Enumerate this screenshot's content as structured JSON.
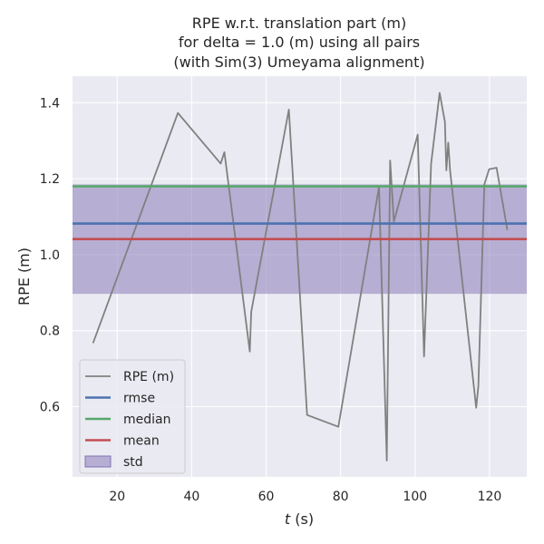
{
  "chart_data": {
    "type": "line",
    "title": [
      "RPE w.r.t. translation part (m)",
      "for delta = 1.0 (m) using all pairs",
      "(with Sim(3) Umeyama alignment)"
    ],
    "xlabel_var": "t",
    "xlabel_unit": " (s)",
    "ylabel": "RPE (m)",
    "xlim": [
      8,
      130
    ],
    "ylim": [
      0.415,
      1.47
    ],
    "xticks": [
      20,
      40,
      60,
      80,
      100,
      120
    ],
    "yticks": [
      0.6,
      0.8,
      1.0,
      1.2,
      1.4
    ],
    "xtick_labels": [
      "20",
      "40",
      "60",
      "80",
      "100",
      "120"
    ],
    "ytick_labels": [
      "0.6",
      "0.8",
      "1.0",
      "1.2",
      "1.4"
    ],
    "grid": true,
    "legend_position": "lower-left",
    "series": [
      {
        "name": "RPE (m)",
        "kind": "line",
        "color": "#808080",
        "x": [
          13.5,
          36.3,
          47.8,
          48.8,
          55.6,
          56.0,
          66.1,
          71.0,
          79.4,
          90.3,
          92.4,
          93.3,
          94.3,
          100.7,
          102.4,
          104.3,
          106.6,
          108.0,
          108.4,
          108.9,
          109.4,
          116.4,
          117.0,
          118.6,
          119.9,
          121.9,
          124.8
        ],
        "y": [
          0.767,
          1.373,
          1.24,
          1.27,
          0.745,
          0.85,
          1.382,
          0.578,
          0.547,
          1.178,
          0.458,
          1.248,
          1.087,
          1.316,
          0.732,
          1.24,
          1.426,
          1.35,
          1.222,
          1.295,
          1.222,
          0.597,
          0.654,
          1.185,
          1.225,
          1.229,
          1.065
        ]
      },
      {
        "name": "rmse",
        "kind": "hline",
        "color": "#4c72b0",
        "value": 1.082
      },
      {
        "name": "median",
        "kind": "hline",
        "color": "#55a868",
        "value": 1.18
      },
      {
        "name": "mean",
        "kind": "hline",
        "color": "#c44e52",
        "value": 1.041
      },
      {
        "name": "std",
        "kind": "band",
        "color": "#8172b3",
        "low": 0.897,
        "high": 1.185
      }
    ]
  },
  "colors": {
    "plot_background": "#eaeaf2",
    "grid": "#ffffff",
    "text": "#262626"
  }
}
